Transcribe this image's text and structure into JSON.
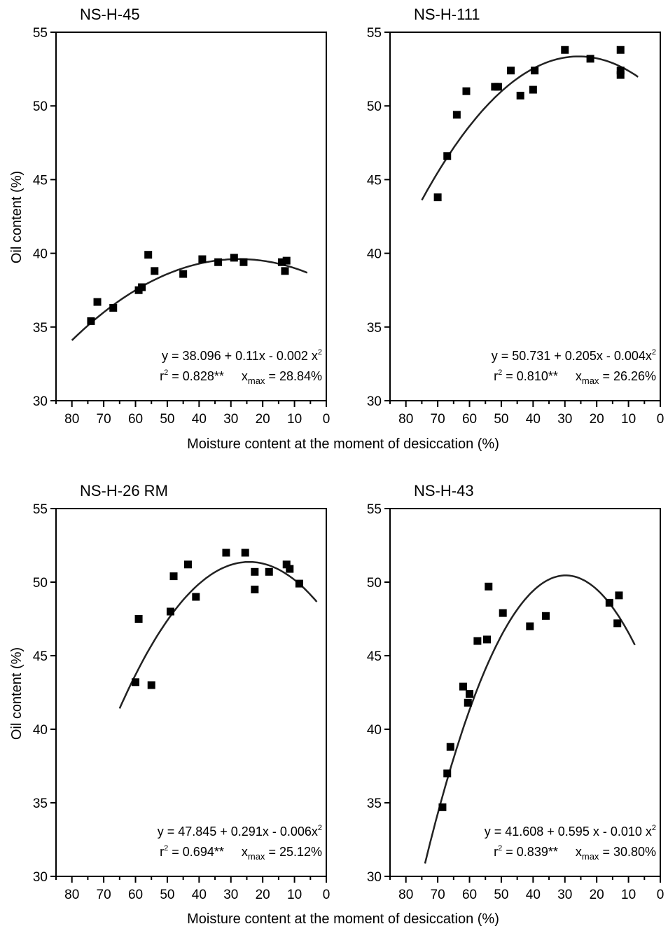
{
  "figure": {
    "ylabel": "Oil content (%)",
    "xlabel": "Moisture content at the moment of desiccation (%)"
  },
  "chart_data": [
    {
      "type": "scatter",
      "title": "NS-H-45",
      "xlim": [
        85,
        0
      ],
      "ylim": [
        30,
        55
      ],
      "xticks": [
        80,
        70,
        60,
        50,
        40,
        30,
        20,
        10,
        0
      ],
      "yticks": [
        30,
        35,
        40,
        45,
        50,
        55
      ],
      "equation": {
        "prefix": "y = 38.096 + 0.11x - 0.002 x",
        "sup": "2"
      },
      "r2": {
        "r": "r",
        "sup": "2",
        "value": " = 0.828**"
      },
      "xmax": {
        "x": "x",
        "sub": "max",
        "value": " = 28.84%"
      },
      "fit": {
        "a": 38.096,
        "b": 0.11,
        "c": -0.002,
        "x_range": [
          80,
          6
        ]
      },
      "points": [
        [
          74,
          35.4
        ],
        [
          72,
          36.7
        ],
        [
          67,
          36.3
        ],
        [
          59,
          37.5
        ],
        [
          58,
          37.7
        ],
        [
          56,
          39.9
        ],
        [
          54,
          38.8
        ],
        [
          45,
          38.6
        ],
        [
          39,
          39.6
        ],
        [
          34,
          39.4
        ],
        [
          29,
          39.7
        ],
        [
          26,
          39.4
        ],
        [
          14,
          39.4
        ],
        [
          13,
          38.8
        ],
        [
          12.5,
          39.5
        ]
      ]
    },
    {
      "type": "scatter",
      "title": "NS-H-111",
      "xlim": [
        85,
        0
      ],
      "ylim": [
        30,
        55
      ],
      "xticks": [
        80,
        70,
        60,
        50,
        40,
        30,
        20,
        10,
        0
      ],
      "yticks": [
        30,
        35,
        40,
        45,
        50,
        55
      ],
      "equation": {
        "prefix": "y = 50.731 + 0.205x - 0.004x",
        "sup": "2"
      },
      "r2": {
        "r": "r",
        "sup": "2",
        "value": " = 0.810**"
      },
      "xmax": {
        "x": "x",
        "sub": "max",
        "value": " = 26.26%"
      },
      "fit": {
        "a": 50.731,
        "b": 0.205,
        "c": -0.004,
        "x_range": [
          75,
          7
        ]
      },
      "points": [
        [
          70,
          43.8
        ],
        [
          67,
          46.6
        ],
        [
          64,
          49.4
        ],
        [
          61,
          51.0
        ],
        [
          52,
          51.3
        ],
        [
          51,
          51.3
        ],
        [
          47,
          52.4
        ],
        [
          44,
          50.7
        ],
        [
          40,
          51.1
        ],
        [
          39.5,
          52.4
        ],
        [
          30,
          53.8
        ],
        [
          22,
          53.2
        ],
        [
          12.5,
          53.8
        ],
        [
          12.5,
          52.1
        ],
        [
          12.5,
          52.4
        ]
      ]
    },
    {
      "type": "scatter",
      "title": "NS-H-26 RM",
      "xlim": [
        85,
        0
      ],
      "ylim": [
        30,
        55
      ],
      "xticks": [
        80,
        70,
        60,
        50,
        40,
        30,
        20,
        10,
        0
      ],
      "yticks": [
        30,
        35,
        40,
        45,
        50,
        55
      ],
      "equation": {
        "prefix": "y = 47.845 + 0.291x - 0.006x",
        "sup": "2"
      },
      "r2": {
        "r": "r",
        "sup": "2",
        "value": " = 0.694**"
      },
      "xmax": {
        "x": "x",
        "sub": "max",
        "value": " = 25.12%"
      },
      "fit": {
        "a": 47.845,
        "b": 0.291,
        "c": -0.006,
        "x_range": [
          65,
          3
        ]
      },
      "points": [
        [
          60,
          43.2
        ],
        [
          59,
          47.5
        ],
        [
          55,
          43.0
        ],
        [
          49,
          48.0
        ],
        [
          48,
          50.4
        ],
        [
          43.5,
          51.2
        ],
        [
          41,
          49.0
        ],
        [
          31.5,
          52.0
        ],
        [
          25.5,
          52.0
        ],
        [
          22.5,
          49.5
        ],
        [
          22.5,
          50.7
        ],
        [
          18,
          50.7
        ],
        [
          12.5,
          51.2
        ],
        [
          11.5,
          50.9
        ],
        [
          8.5,
          49.9
        ]
      ]
    },
    {
      "type": "scatter",
      "title": "NS-H-43",
      "xlim": [
        85,
        0
      ],
      "ylim": [
        30,
        55
      ],
      "xticks": [
        80,
        70,
        60,
        50,
        40,
        30,
        20,
        10,
        0
      ],
      "yticks": [
        30,
        35,
        40,
        45,
        50,
        55
      ],
      "equation": {
        "prefix": "y = 41.608 + 0.595 x - 0.010 x",
        "sup": "2"
      },
      "r2": {
        "r": "r",
        "sup": "2",
        "value": " = 0.839**"
      },
      "xmax": {
        "x": "x",
        "sub": "max",
        "value": " = 30.80%"
      },
      "fit": {
        "a": 41.608,
        "b": 0.595,
        "c": -0.01,
        "x_range": [
          74,
          8
        ]
      },
      "points": [
        [
          68.5,
          34.7
        ],
        [
          67,
          37.0
        ],
        [
          66,
          38.8
        ],
        [
          62,
          42.9
        ],
        [
          60.5,
          41.8
        ],
        [
          60,
          42.4
        ],
        [
          57.5,
          46.0
        ],
        [
          54.5,
          46.1
        ],
        [
          54,
          49.7
        ],
        [
          49.5,
          47.9
        ],
        [
          41,
          47.0
        ],
        [
          36,
          47.7
        ],
        [
          16,
          48.6
        ],
        [
          13.5,
          47.2
        ],
        [
          13,
          49.1
        ]
      ]
    }
  ]
}
